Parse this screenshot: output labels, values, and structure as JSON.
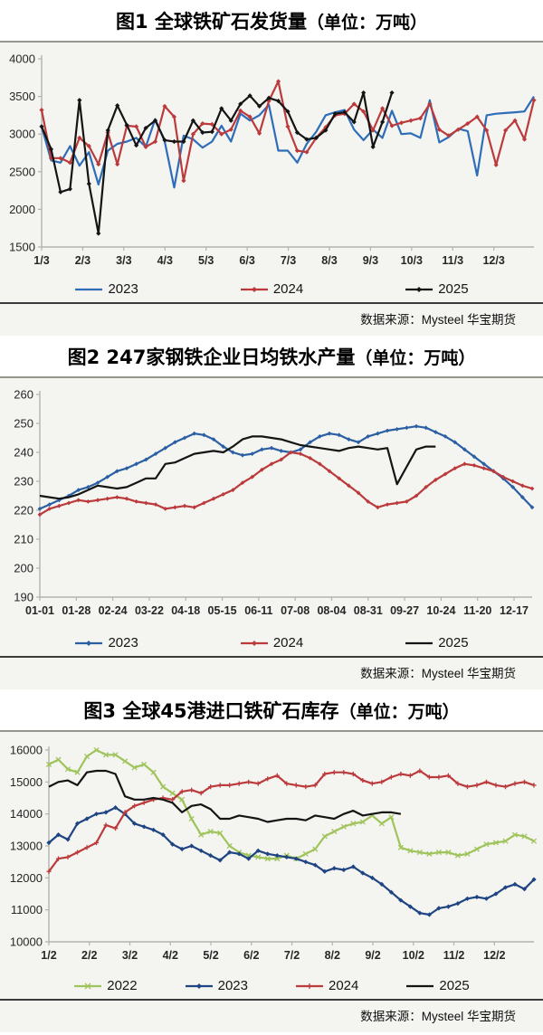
{
  "charts": [
    {
      "title": "图1 全球铁矿石发货量",
      "title_unit": "（单位：万吨）",
      "source": "数据来源：Mysteel 华宝期货",
      "chart_data": {
        "type": "line",
        "ylabel": "万吨",
        "ylim": [
          1500,
          4000
        ],
        "ytick_step": 500,
        "grid": false,
        "legend_position": "bottom",
        "x_ticks": [
          "1/3",
          "2/3",
          "3/3",
          "4/3",
          "5/3",
          "6/3",
          "7/3",
          "8/3",
          "9/3",
          "10/3",
          "11/3",
          "12/3"
        ],
        "series": [
          {
            "name": "2023",
            "color": "#2e6db8",
            "marker": "none",
            "values": [
              3100,
              2650,
              2620,
              2840,
              2580,
              2760,
              2330,
              2780,
              2870,
              2900,
              2950,
              2830,
              3200,
              2900,
              2290,
              2980,
              2930,
              2820,
              2900,
              3110,
              2900,
              3270,
              3180,
              3250,
              3390,
              2780,
              2780,
              2620,
              2870,
              3030,
              3250,
              3290,
              3320,
              3060,
              2920,
              3060,
              2950,
              3310,
              3000,
              3010,
              2950,
              3450,
              2890,
              2960,
              3070,
              3040,
              2450,
              3250,
              3270,
              3280,
              3290,
              3300,
              3500
            ]
          },
          {
            "name": "2024",
            "color": "#bb3a3c",
            "marker": "diamond",
            "values": [
              3320,
              2680,
              2680,
              2620,
              2950,
              2840,
              2600,
              3020,
              2600,
              3110,
              3100,
              2830,
              2900,
              3370,
              3230,
              2380,
              3000,
              3140,
              3130,
              3000,
              3060,
              3310,
              3230,
              3010,
              3440,
              3700,
              3100,
              2780,
              2760,
              2950,
              3090,
              3250,
              3270,
              3400,
              3300,
              3050,
              3340,
              3110,
              3150,
              3180,
              3210,
              3400,
              3060,
              2980,
              3060,
              3140,
              3230,
              3050,
              2590,
              3050,
              3180,
              2930,
              3450
            ]
          },
          {
            "name": "2025",
            "color": "#141414",
            "marker": "diamond",
            "values": [
              3100,
              2800,
              2230,
              2270,
              3450,
              2340,
              1680,
              3050,
              3380,
              3120,
              2850,
              3080,
              3180,
              2920,
              2900,
              2900,
              3180,
              3020,
              3030,
              3340,
              3180,
              3400,
              3510,
              3370,
              3480,
              3440,
              3300,
              3020,
              2930,
              2950,
              3050,
              3270,
              3290,
              3160,
              3550,
              2830,
              3160,
              3550
            ]
          }
        ]
      }
    },
    {
      "title": "图2 247家钢铁企业日均铁水产量",
      "title_unit": "（单位：万吨）",
      "source": "数据来源：Mysteel 华宝期货",
      "chart_data": {
        "type": "line",
        "ylabel": "万吨",
        "ylim": [
          190,
          260
        ],
        "ytick_step": 10,
        "grid": false,
        "legend_position": "bottom",
        "x_ticks": [
          "01-01",
          "01-28",
          "02-24",
          "03-22",
          "04-18",
          "05-15",
          "06-11",
          "07-08",
          "08-04",
          "08-31",
          "09-27",
          "10-24",
          "11-20",
          "12-17"
        ],
        "series": [
          {
            "name": "2023",
            "color": "#2b5fa3",
            "marker": "diamond",
            "values": [
              220.5,
              222,
              223.5,
              225,
              227,
              228,
              229.5,
              231.5,
              233.5,
              234.5,
              236,
              237.5,
              239.5,
              241.5,
              243.5,
              245,
              246.5,
              246,
              244.5,
              242,
              240,
              239,
              239.5,
              241,
              241.5,
              240.5,
              240,
              241,
              243.5,
              245.5,
              246.5,
              246,
              244.5,
              243.5,
              245.5,
              246.5,
              247.5,
              248,
              248.5,
              249,
              248.5,
              247,
              245.5,
              243.5,
              241,
              238.5,
              236,
              233.5,
              231,
              228,
              224.5,
              221
            ]
          },
          {
            "name": "2024",
            "color": "#bb3a3c",
            "marker": "diamond",
            "values": [
              218.5,
              220.5,
              221.5,
              222.5,
              223.5,
              223,
              223.5,
              224,
              224.5,
              224,
              223,
              222.5,
              222,
              220.5,
              221,
              221.5,
              221,
              222.5,
              224,
              225.5,
              227,
              229.5,
              231.5,
              234,
              236,
              237.5,
              240,
              239.5,
              238,
              236,
              233.5,
              231,
              228.5,
              226,
              223,
              221,
              222,
              222.5,
              223,
              225,
              228,
              230.5,
              232.5,
              234.5,
              236,
              235.5,
              234.5,
              233.5,
              231.5,
              230,
              228.5,
              227.5
            ]
          },
          {
            "name": "2025",
            "color": "#141414",
            "marker": "none",
            "values": [
              225,
              224.5,
              224,
              224.5,
              225.5,
              227,
              228.5,
              228,
              227.5,
              228,
              229.5,
              231,
              231,
              236,
              236.5,
              238,
              239.5,
              240,
              240.5,
              240,
              242,
              244.5,
              245.5,
              245.5,
              245,
              244.5,
              243.5,
              242.5,
              242,
              241.5,
              241,
              240.5,
              241.5,
              242,
              241.5,
              241,
              241.5,
              229,
              235,
              241,
              242,
              242
            ]
          }
        ]
      }
    },
    {
      "title": "图3 全球45港进口铁矿石库存",
      "title_unit": "（单位：万吨）",
      "source": "数据来源：Mysteel 华宝期货",
      "chart_data": {
        "type": "line",
        "ylabel": "万吨",
        "ylim": [
          10000,
          16000
        ],
        "ytick_step": 1000,
        "grid": false,
        "legend_position": "bottom",
        "x_ticks": [
          "1/2",
          "2/2",
          "3/2",
          "4/2",
          "5/2",
          "6/2",
          "7/2",
          "8/2",
          "9/2",
          "10/2",
          "11/2",
          "12/2"
        ],
        "series": [
          {
            "name": "2022",
            "color": "#9fc45c",
            "marker": "x",
            "values": [
              15550,
              15700,
              15400,
              15300,
              15800,
              16000,
              15850,
              15850,
              15650,
              15450,
              15550,
              15300,
              14850,
              14650,
              14450,
              13850,
              13350,
              13450,
              13400,
              13000,
              12800,
              12700,
              12650,
              12600,
              12600,
              12700,
              12600,
              12750,
              12900,
              13300,
              13450,
              13600,
              13700,
              13750,
              13950,
              13700,
              13900,
              12950,
              12850,
              12800,
              12750,
              12800,
              12800,
              12700,
              12750,
              12900,
              13050,
              13100,
              13150,
              13350,
              13300,
              13150
            ]
          },
          {
            "name": "2023",
            "color": "#1f4482",
            "marker": "diamond",
            "values": [
              13100,
              13350,
              13200,
              13700,
              13850,
              14000,
              14050,
              14200,
              14000,
              13700,
              13600,
              13500,
              13350,
              13050,
              12900,
              13000,
              12850,
              12700,
              12550,
              12800,
              12750,
              12600,
              12850,
              12750,
              12700,
              12650,
              12600,
              12500,
              12400,
              12200,
              12300,
              12250,
              12350,
              12150,
              12000,
              11800,
              11550,
              11300,
              11100,
              10900,
              10850,
              11050,
              11100,
              11200,
              11350,
              11400,
              11350,
              11500,
              11700,
              11800,
              11650,
              11950
            ]
          },
          {
            "name": "2024",
            "color": "#bb3a3c",
            "marker": "plus",
            "values": [
              12200,
              12600,
              12650,
              12800,
              12950,
              13100,
              13650,
              13550,
              14050,
              14250,
              14350,
              14450,
              14500,
              14450,
              14700,
              14750,
              14650,
              14850,
              14900,
              14900,
              14950,
              15000,
              14950,
              15100,
              15200,
              14950,
              14900,
              14850,
              14900,
              15250,
              15300,
              15300,
              15250,
              15050,
              14950,
              15000,
              15150,
              15250,
              15200,
              15350,
              15150,
              15150,
              15200,
              14950,
              14850,
              14900,
              15000,
              14900,
              14850,
              14950,
              15000,
              14900
            ]
          },
          {
            "name": "2025",
            "color": "#141414",
            "marker": "none",
            "values": [
              14850,
              15000,
              15050,
              14900,
              15300,
              15350,
              15350,
              15250,
              14550,
              14450,
              14450,
              14500,
              14450,
              14350,
              14050,
              14250,
              14300,
              14150,
              13850,
              13850,
              13950,
              13900,
              13850,
              13750,
              13800,
              13850,
              13850,
              13800,
              13950,
              13900,
              13850,
              14000,
              14100,
              13950,
              14000,
              14050,
              14050,
              14000
            ]
          }
        ]
      }
    }
  ]
}
